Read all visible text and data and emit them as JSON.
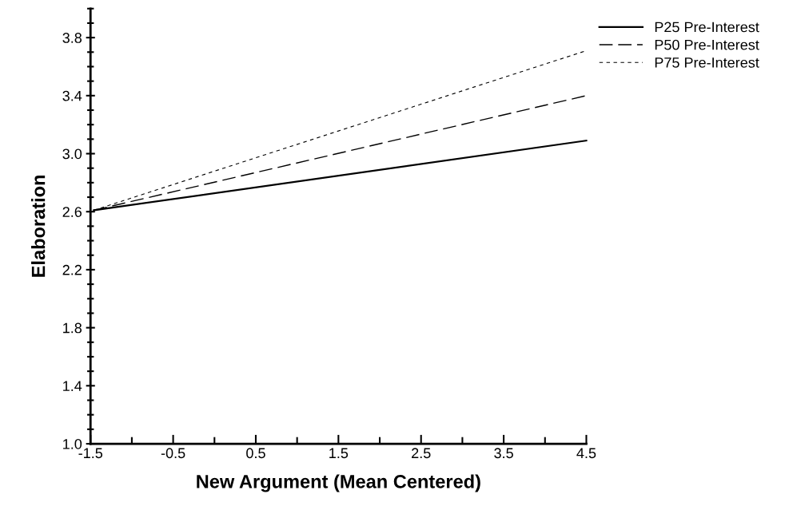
{
  "chart_data": {
    "type": "line",
    "xlabel": "New Argument (Mean Centered)",
    "ylabel": "Elaboration",
    "xlim": [
      -1.5,
      4.5
    ],
    "xticks": [
      -1.5,
      -0.5,
      0.5,
      1.5,
      2.5,
      3.5,
      4.5
    ],
    "ylim": [
      1.0,
      4.0
    ],
    "yticks": [
      {
        "value": 1.0,
        "label": "1.0"
      },
      {
        "value": 1.4,
        "label": "1.4"
      },
      {
        "value": 1.8,
        "label": "1.8"
      },
      {
        "value": 2.2,
        "label": "2.2"
      },
      {
        "value": 2.6,
        "label": "2.6"
      },
      {
        "value": 3.0,
        "label": "3.0"
      },
      {
        "value": 3.4,
        "label": "3.4"
      },
      {
        "value": 3.8,
        "label": "3.8"
      }
    ],
    "x": [
      -1.46,
      4.5
    ],
    "grid": false,
    "legend": "top right",
    "marker": "none",
    "series": [
      {
        "name": "P25 Pre-Interest",
        "color": "#000000",
        "line_style": "solid",
        "values": [
          2.61,
          3.09
        ]
      },
      {
        "name": "P50 Pre-Interest",
        "color": "#000000",
        "line_style": "dashed",
        "values": [
          2.61,
          3.4
        ]
      },
      {
        "name": "P75 Pre-Interest",
        "color": "#000000",
        "line_style": "dotted",
        "values": [
          2.61,
          3.71
        ]
      }
    ]
  }
}
